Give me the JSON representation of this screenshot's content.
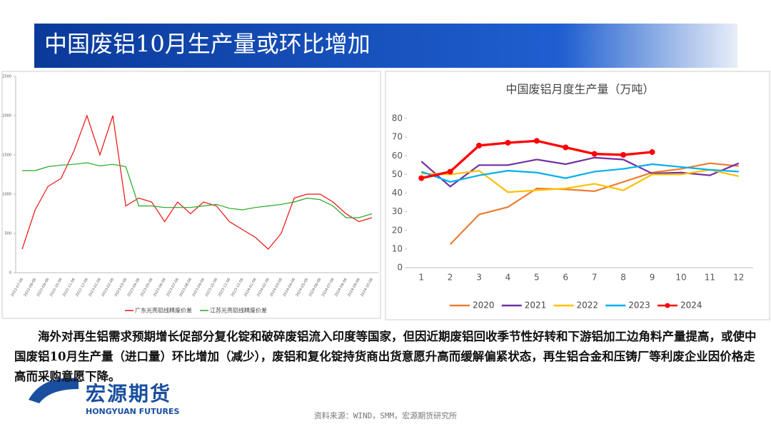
{
  "header": {
    "title": "中国废铝10月生产量或环比增加"
  },
  "chart_data": [
    {
      "type": "line",
      "categories": [
        "2022-07-06",
        "2022-08-06",
        "2022-09-06",
        "2022-10-06",
        "2022-11-06",
        "2022-12-06",
        "2023-01-06",
        "2023-02-06",
        "2023-03-06",
        "2023-04-06",
        "2023-05-06",
        "2023-06-06",
        "2023-07-06",
        "2023-08-06",
        "2023-09-06",
        "2023-10-06",
        "2023-11-06",
        "2023-12-06",
        "2024-01-06",
        "2024-02-06",
        "2024-03-06",
        "2024-04-06",
        "2024-05-06",
        "2024-06-06",
        "2024-07-06",
        "2024-08-06",
        "2024-09-06",
        "2024-10-06"
      ],
      "series": [
        {
          "name": "广东光亮铝线精废价差",
          "color": "#ee1111",
          "values": [
            300,
            800,
            1100,
            1200,
            1550,
            2000,
            1500,
            2000,
            850,
            950,
            900,
            650,
            900,
            750,
            900,
            850,
            650,
            550,
            450,
            300,
            500,
            950,
            1000,
            1000,
            900,
            750,
            650,
            700
          ]
        },
        {
          "name": "江苏光亮铝线精废价差",
          "color": "#22aa22",
          "values": [
            1300,
            1300,
            1350,
            1370,
            1380,
            1400,
            1360,
            1380,
            1350,
            850,
            850,
            830,
            830,
            830,
            850,
            870,
            820,
            800,
            830,
            850,
            870,
            900,
            950,
            930,
            850,
            700,
            700,
            750
          ]
        }
      ],
      "ylim": [
        0,
        2500
      ],
      "yticks": [
        0,
        500,
        1000,
        1500,
        2000,
        2500
      ],
      "grid": false,
      "legend": "bottom"
    },
    {
      "type": "line",
      "title": "中国废铝月度生产量（万吨）",
      "categories": [
        "1",
        "2",
        "3",
        "4",
        "5",
        "6",
        "7",
        "8",
        "9",
        "10",
        "11",
        "12"
      ],
      "series": [
        {
          "name": "2020",
          "color": "#ed7d31",
          "values": [
            null,
            12.5,
            28.5,
            32.5,
            42.5,
            42,
            41,
            46,
            51,
            53,
            56,
            54.5
          ]
        },
        {
          "name": "2021",
          "color": "#7030a0",
          "values": [
            57,
            43.5,
            55,
            55,
            58,
            55.5,
            59,
            58,
            50.5,
            51,
            49.5,
            56
          ]
        },
        {
          "name": "2022",
          "color": "#ffc000",
          "values": [
            50.5,
            50,
            52,
            40.5,
            41.5,
            42.5,
            45,
            41.5,
            50,
            50,
            52.5,
            49
          ]
        },
        {
          "name": "2023",
          "color": "#00b0f0",
          "values": [
            51.5,
            46,
            49.5,
            52,
            51,
            48,
            51.5,
            53,
            55.5,
            54,
            52.5,
            51.5
          ]
        },
        {
          "name": "2024",
          "color": "#ff0000",
          "markers": true,
          "values": [
            48,
            51.5,
            65.5,
            67,
            68,
            64.5,
            61,
            60.5,
            62,
            null,
            null,
            null
          ]
        }
      ],
      "ylim": [
        0,
        80
      ],
      "yticks": [
        0,
        10,
        20,
        30,
        40,
        50,
        60,
        70,
        80
      ],
      "grid": false,
      "legend": "bottom"
    }
  ],
  "body": {
    "text": "海外对再生铝需求预期增长促部分复化锭和破碎废铝流入印度等国家，但因近期废铝回收季节性好转和下游铝加工边角料产量提高，或使中国废铝10月生产量（进口量）环比增加（减少），废铝和复化锭持货商出货意愿升高而缓解偏紧状态，再生铝合金和压铸厂等利废企业因价格走高而采购意愿下降。"
  },
  "logo": {
    "name": "宏源期货",
    "english": "HONGYUAN FUTURES"
  },
  "source": "资料来源：WIND，SMM，宏源期货研究所"
}
